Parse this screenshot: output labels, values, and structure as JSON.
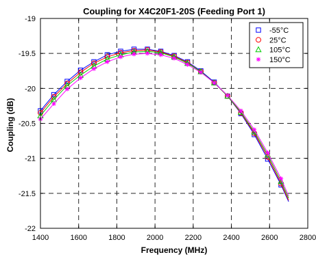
{
  "chart_data": {
    "type": "line",
    "title": "Coupling for X4C20F1-20S (Feeding Port 1)",
    "xlabel": "Frequency (MHz)",
    "ylabel": "Coupling (dB)",
    "xlim": [
      1400,
      2800
    ],
    "ylim": [
      -22,
      -19
    ],
    "xticks": [
      1400,
      1600,
      1800,
      2000,
      2200,
      2400,
      2600,
      2800
    ],
    "yticks": [
      -19,
      -19.5,
      -20,
      -20.5,
      -21,
      -21.5,
      -22
    ],
    "grid": true,
    "legend_position": "top-right",
    "x": [
      1400,
      1470,
      1540,
      1610,
      1680,
      1750,
      1820,
      1890,
      1960,
      2030,
      2100,
      2170,
      2240,
      2310,
      2380,
      2450,
      2520,
      2590,
      2660,
      2700
    ],
    "series": [
      {
        "name": "-55°C",
        "color": "#0000ff",
        "marker": "square",
        "values": [
          -20.32,
          -20.09,
          -19.9,
          -19.74,
          -19.62,
          -19.52,
          -19.47,
          -19.44,
          -19.44,
          -19.47,
          -19.53,
          -19.62,
          -19.75,
          -19.91,
          -20.11,
          -20.36,
          -20.66,
          -21.01,
          -21.38,
          -21.62
        ]
      },
      {
        "name": "25°C",
        "color": "#ff0000",
        "marker": "circle",
        "values": [
          -20.35,
          -20.12,
          -19.93,
          -19.77,
          -19.64,
          -19.55,
          -19.49,
          -19.46,
          -19.45,
          -19.48,
          -19.54,
          -19.63,
          -19.76,
          -19.92,
          -20.11,
          -20.35,
          -20.64,
          -20.98,
          -21.36,
          -21.6
        ]
      },
      {
        "name": "105°C",
        "color": "#00cc00",
        "marker": "triangle",
        "values": [
          -20.39,
          -20.16,
          -19.96,
          -19.81,
          -19.68,
          -19.58,
          -19.52,
          -19.48,
          -19.47,
          -19.49,
          -19.55,
          -19.64,
          -19.76,
          -19.92,
          -20.11,
          -20.34,
          -20.62,
          -20.95,
          -21.33,
          -21.57
        ]
      },
      {
        "name": "150°C",
        "color": "#ff00ff",
        "marker": "star",
        "values": [
          -20.44,
          -20.22,
          -20.01,
          -19.85,
          -19.72,
          -19.62,
          -19.55,
          -19.51,
          -19.5,
          -19.52,
          -19.57,
          -19.66,
          -19.77,
          -19.92,
          -20.1,
          -20.32,
          -20.59,
          -20.92,
          -21.29,
          -21.54
        ]
      }
    ]
  }
}
